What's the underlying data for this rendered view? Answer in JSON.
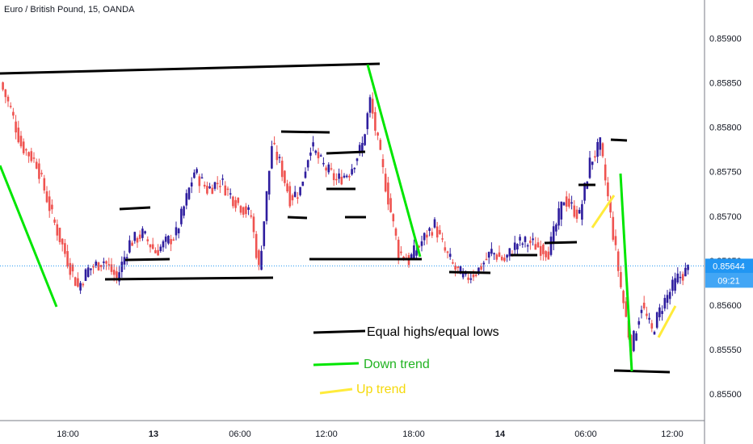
{
  "header": {
    "title": "Euro / British Pound, 15, OANDA"
  },
  "chart_data": {
    "type": "candlestick",
    "y_ticks": [
      "0.85900",
      "0.85850",
      "0.85800",
      "0.85750",
      "0.85700",
      "0.85650",
      "0.85600",
      "0.85550",
      "0.85500"
    ],
    "x_ticks": [
      {
        "label": "18:00",
        "bold": false
      },
      {
        "label": "13",
        "bold": true
      },
      {
        "label": "06:00",
        "bold": false
      },
      {
        "label": "12:00",
        "bold": false
      },
      {
        "label": "18:00",
        "bold": false
      },
      {
        "label": "14",
        "bold": true
      },
      {
        "label": "06:00",
        "bold": false
      },
      {
        "label": "12:00",
        "bold": false
      }
    ],
    "last_price": "0.85644",
    "countdown": "09:21",
    "up_color": "#2e1d9e",
    "down_color": "#ef5350",
    "legend": [
      {
        "label": "Equal highs/equal lows",
        "color": "#000000",
        "text_color": "#000000"
      },
      {
        "label": "Down trend",
        "color": "#00e600",
        "text_color": "#21b321"
      },
      {
        "label": "Up trend",
        "color": "#ffeb3b",
        "text_color": "#f5d90a"
      }
    ]
  }
}
